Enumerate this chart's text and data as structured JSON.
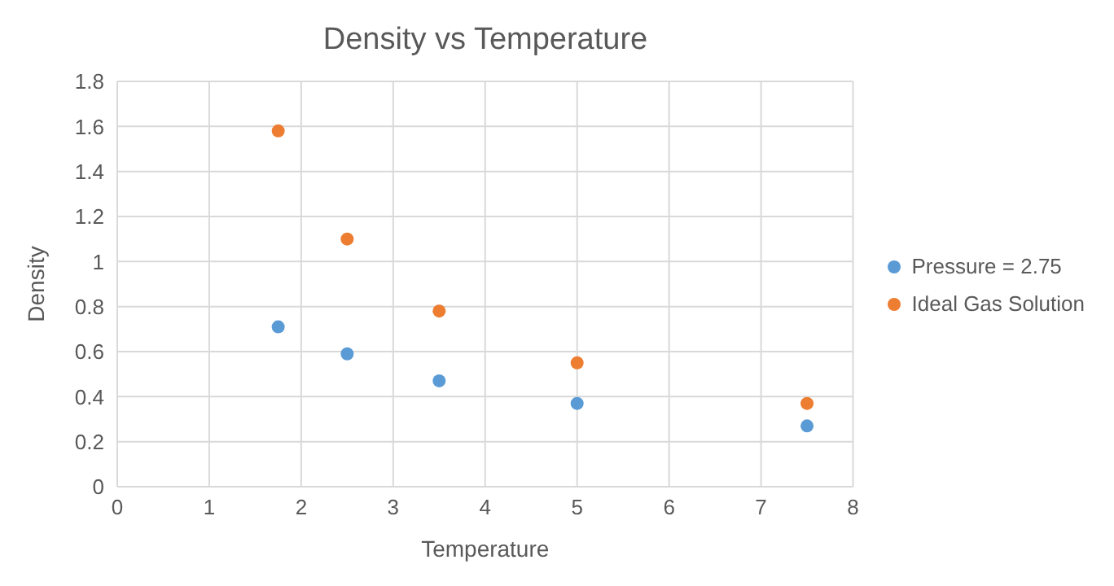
{
  "chart_data": {
    "type": "scatter",
    "title": "Density vs Temperature",
    "xlabel": "Temperature",
    "ylabel": "Density",
    "series": [
      {
        "name": "Pressure = 2.75",
        "color": "#5b9bd5",
        "x": [
          1.75,
          2.5,
          3.5,
          5,
          7.5
        ],
        "values": [
          0.71,
          0.59,
          0.47,
          0.37,
          0.27
        ]
      },
      {
        "name": "Ideal Gas Solution",
        "color": "#ed7d31",
        "x": [
          1.75,
          2.5,
          3.5,
          5,
          7.5
        ],
        "values": [
          1.58,
          1.1,
          0.78,
          0.55,
          0.37
        ]
      }
    ],
    "xlim": [
      0,
      8
    ],
    "xticks": [
      0,
      1,
      2,
      3,
      4,
      5,
      6,
      7,
      8
    ],
    "ylim": [
      0,
      1.8
    ],
    "yticks": [
      0,
      0.2,
      0.4,
      0.6,
      0.8,
      1,
      1.2,
      1.4,
      1.6,
      1.8
    ],
    "grid": true,
    "legend": "right",
    "marker": "circle"
  }
}
